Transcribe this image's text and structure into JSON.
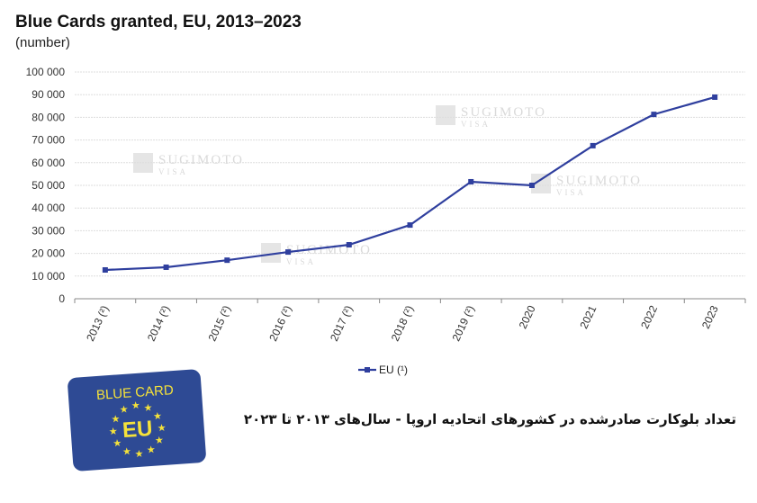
{
  "chart_data": {
    "type": "line",
    "title": "Blue Cards granted, EU, 2013–2023",
    "subtitle": "(number)",
    "categories": [
      "2013 (²)",
      "2014 (²)",
      "2015 (²)",
      "2016 (²)",
      "2017 (²)",
      "2018 (²)",
      "2019 (²)",
      "2020",
      "2021",
      "2022",
      "2023"
    ],
    "series": [
      {
        "name": "EU (¹)",
        "color": "#2f3f9e",
        "values": [
          12700,
          13900,
          17000,
          20600,
          23800,
          32500,
          51600,
          50000,
          67500,
          81300,
          88900
        ]
      }
    ],
    "ylim": [
      0,
      100000
    ],
    "yticks": [
      0,
      10000,
      20000,
      30000,
      40000,
      50000,
      60000,
      70000,
      80000,
      90000,
      100000
    ],
    "ytick_labels": [
      "0",
      "10 000",
      "20 000",
      "30 000",
      "40 000",
      "50 000",
      "60 000",
      "70 000",
      "80 000",
      "90 000",
      "100 000"
    ],
    "grid": true,
    "legend": "bottom-center"
  },
  "caption": "تعداد بلوکارت صادرشده در کشورهای اتحادیه اروپا - سال‌های ۲۰۱۳ تا ۲۰۲۳",
  "card": {
    "top_text": "BLUE CARD",
    "center_text": "EU",
    "color": "#2e4a94",
    "star_color": "#f5e23a"
  },
  "watermark": {
    "line1": "SUGIMOTO",
    "line2": "VISA"
  }
}
